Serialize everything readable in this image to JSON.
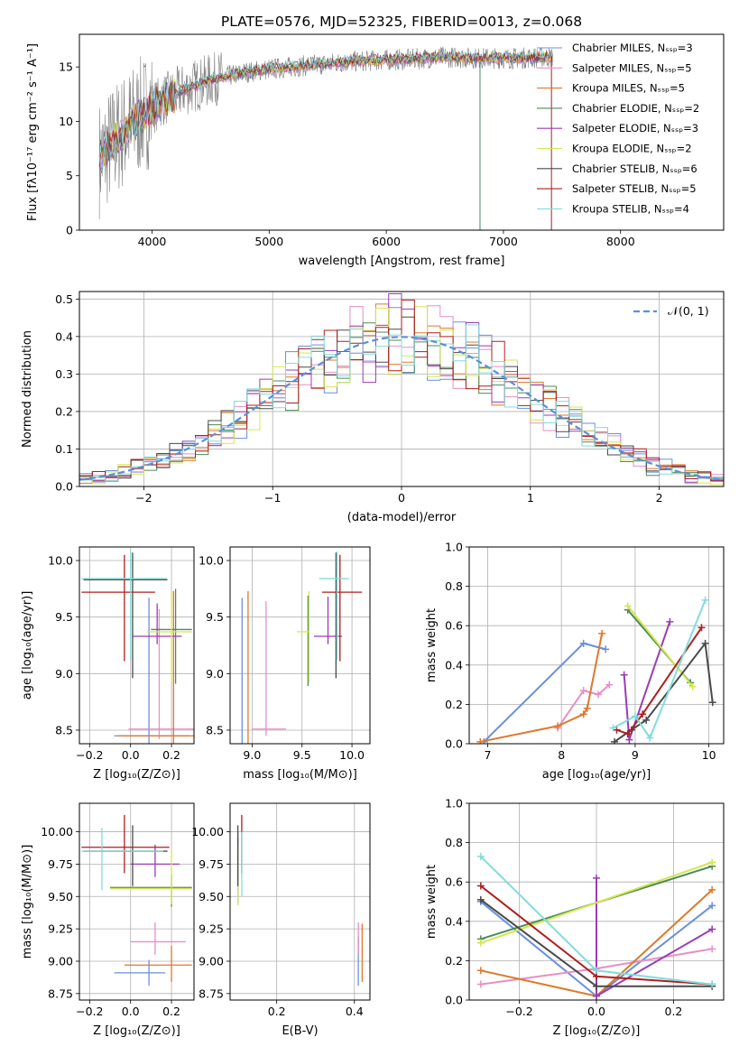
{
  "figure_title": "PLATE=0576, MJD=52325, FIBERID=0013, z=0.068",
  "colors": {
    "s0": "#6a8fdc",
    "s1": "#e88ec6",
    "s2": "#e0782a",
    "s3": "#4f8a5a",
    "s4": "#9a3cb4",
    "s5": "#d2e84e",
    "s6": "#4a4a4a",
    "s7": "#b01e1e",
    "s8": "#82dcdc",
    "data": "#808080",
    "normal": "#5b8fd9",
    "grid": "#b0b0b0"
  },
  "chart_data": [
    {
      "id": "spectrum",
      "type": "line",
      "xlabel": "wavelength [Angstrom, rest frame]",
      "ylabel": "Flux [fλ10⁻¹⁷ erg cm⁻² s⁻¹ A⁻¹]",
      "xlim": [
        3380,
        8880
      ],
      "ylim": [
        0,
        18
      ],
      "xticks": [
        "4000",
        "5000",
        "6000",
        "7000",
        "8000"
      ],
      "yticks": [
        "0",
        "5",
        "10",
        "15"
      ],
      "grid": false,
      "legend_placement": "upper-right",
      "model_envelope": {
        "x": [
          3550,
          3700,
          3900,
          4100,
          4300,
          4500,
          4800,
          5000,
          5300,
          5600,
          5900,
          6200,
          6500,
          6800,
          7100,
          7400
        ],
        "y": [
          6.5,
          8.5,
          10.5,
          12.0,
          13.0,
          13.8,
          14.5,
          14.8,
          15.1,
          15.4,
          15.6,
          15.7,
          15.9,
          15.8,
          15.8,
          15.9
        ]
      },
      "data_x_range": [
        3550,
        7420
      ],
      "legend": [
        {
          "label": "Chabrier MILES, N_SSP=3",
          "color": "s0"
        },
        {
          "label": "Salpeter MILES, N_SSP=5",
          "color": "s1"
        },
        {
          "label": "Kroupa MILES, N_SSP=5",
          "color": "s2"
        },
        {
          "label": "Chabrier ELODIE, N_SSP=2",
          "color": "s3"
        },
        {
          "label": "Salpeter ELODIE, N_SSP=3",
          "color": "s4"
        },
        {
          "label": "Kroupa ELODIE, N_SSP=2",
          "color": "s5"
        },
        {
          "label": "Chabrier STELIB, N_SSP=6",
          "color": "s6"
        },
        {
          "label": "Salpeter STELIB, N_SSP=5",
          "color": "s7"
        },
        {
          "label": "Kroupa STELIB, N_SSP=4",
          "color": "s8"
        }
      ]
    },
    {
      "id": "residuals",
      "type": "histogram",
      "xlabel": "(data-model)/error",
      "ylabel": "Normed distribution",
      "xlim": [
        -2.5,
        2.5
      ],
      "ylim": [
        0,
        0.52
      ],
      "xticks": [
        "−2",
        "−1",
        "0",
        "1",
        "2"
      ],
      "yticks": [
        "0.0",
        "0.1",
        "0.2",
        "0.3",
        "0.4",
        "0.5"
      ],
      "grid": true,
      "legend_placement": "upper-right",
      "legend_label": "𝒩(0, 1)",
      "bin_width": 0.1,
      "n_bins": 50,
      "normal_curve": {
        "mean": 0,
        "sigma": 1
      }
    },
    {
      "id": "age_vs_Z",
      "type": "errorbar",
      "xlabel": "Z [log₁₀(Z/Z⊙)]",
      "ylabel": "age  [log₁₀(age/yr)]",
      "xlim": [
        -0.25,
        0.31
      ],
      "ylim": [
        8.38,
        10.12
      ],
      "xticks": [
        "−0.2",
        "0.0",
        "0.2"
      ],
      "yticks": [
        "8.5",
        "9.0",
        "9.5",
        "10.0"
      ],
      "grid": true,
      "points": [
        {
          "x": 0.09,
          "y": 8.45,
          "xerr": [
            0.17,
            0.2
          ],
          "yerr": [
            0.08,
            1.22
          ],
          "color": "s0"
        },
        {
          "x": 0.14,
          "y": 8.51,
          "xerr": [
            0.15,
            0.18
          ],
          "yerr": [
            0.09,
            1.06
          ],
          "color": "s1"
        },
        {
          "x": 0.21,
          "y": 8.45,
          "xerr": [
            0.27,
            0.1
          ],
          "yerr": [
            0.1,
            1.28
          ],
          "color": "s2"
        },
        {
          "x": 0.22,
          "y": 9.39,
          "xerr": [
            0.12,
            0.08
          ],
          "yerr": [
            0.48,
            0.36
          ],
          "color": "s3"
        },
        {
          "x": 0.13,
          "y": 9.33,
          "xerr": [
            0.12,
            0.12
          ],
          "yerr": [
            0.07,
            0.29
          ],
          "color": "s4"
        },
        {
          "x": 0.2,
          "y": 9.37,
          "xerr": [
            0.12,
            0.1
          ],
          "yerr": [
            0.45,
            0.36
          ],
          "color": "s5"
        },
        {
          "x": 0.01,
          "y": 9.83,
          "xerr": [
            0.24,
            0.17
          ],
          "yerr": [
            0.87,
            0.24
          ],
          "color": "s6"
        },
        {
          "x": -0.03,
          "y": 9.72,
          "xerr": [
            0.21,
            0.15
          ],
          "yerr": [
            0.61,
            0.33
          ],
          "color": "s7"
        },
        {
          "x": 0.0,
          "y": 9.84,
          "xerr": [
            0.24,
            0.18
          ],
          "yerr": [
            0.72,
            0.24
          ],
          "color": "s8"
        }
      ]
    },
    {
      "id": "age_vs_mass",
      "type": "errorbar",
      "xlabel": "mass [log₁₀(M/M⊙)]",
      "ylabel": "",
      "xlim": [
        8.78,
        10.18
      ],
      "ylim": [
        8.38,
        10.12
      ],
      "xticks": [
        "9.0",
        "9.5",
        "10.0"
      ],
      "yticks": [
        "8.5",
        "9.0",
        "9.5",
        "10.0"
      ],
      "grid": true,
      "points": [
        {
          "x": 8.9,
          "y": 8.45,
          "xerr": [
            0.0,
            0.0
          ],
          "yerr": [
            0.08,
            1.22
          ],
          "color": "s0"
        },
        {
          "x": 9.14,
          "y": 8.51,
          "xerr": [
            0.14,
            0.2
          ],
          "yerr": [
            0.06,
            1.13
          ],
          "color": "s1"
        },
        {
          "x": 8.96,
          "y": 8.45,
          "xerr": [
            0.0,
            0.0
          ],
          "yerr": [
            0.1,
            1.28
          ],
          "color": "s2"
        },
        {
          "x": 9.56,
          "y": 9.39,
          "xerr": [
            0.0,
            0.0
          ],
          "yerr": [
            0.5,
            0.3
          ],
          "color": "s3"
        },
        {
          "x": 9.76,
          "y": 9.33,
          "xerr": [
            0.14,
            0.14
          ],
          "yerr": [
            0.07,
            0.35
          ],
          "color": "s4"
        },
        {
          "x": 9.57,
          "y": 9.37,
          "xerr": [
            0.12,
            0.0
          ],
          "yerr": [
            0.45,
            0.36
          ],
          "color": "s5"
        },
        {
          "x": 9.84,
          "y": 9.83,
          "xerr": [
            0.0,
            0.0
          ],
          "yerr": [
            0.87,
            0.24
          ],
          "color": "s6"
        },
        {
          "x": 9.88,
          "y": 9.72,
          "xerr": [
            0.18,
            0.22
          ],
          "yerr": [
            0.61,
            0.33
          ],
          "color": "s7"
        },
        {
          "x": 9.85,
          "y": 9.84,
          "xerr": [
            0.18,
            0.12
          ],
          "yerr": [
            0.72,
            0.24
          ],
          "color": "s8"
        }
      ]
    },
    {
      "id": "massweight_vs_age",
      "type": "line",
      "xlabel": "age  [log₁₀(age/yr)]",
      "ylabel": "mass weight",
      "xlim": [
        6.75,
        10.2
      ],
      "ylim": [
        0,
        1
      ],
      "xticks": [
        "7",
        "8",
        "9",
        "10"
      ],
      "yticks": [
        "0.0",
        "0.2",
        "0.4",
        "0.6",
        "0.8",
        "1.0"
      ],
      "grid": true,
      "series": [
        {
          "color": "s0",
          "x": [
            6.95,
            8.3,
            8.6
          ],
          "y": [
            0.01,
            0.51,
            0.48
          ]
        },
        {
          "color": "s1",
          "x": [
            7.95,
            8.3,
            8.5,
            8.65
          ],
          "y": [
            0.08,
            0.27,
            0.25,
            0.3
          ]
        },
        {
          "color": "s2",
          "x": [
            6.9,
            7.95,
            8.3,
            8.35,
            8.55
          ],
          "y": [
            0.01,
            0.09,
            0.15,
            0.18,
            0.56
          ]
        },
        {
          "color": "s3",
          "x": [
            8.9,
            9.75
          ],
          "y": [
            0.68,
            0.31
          ]
        },
        {
          "color": "s4",
          "x": [
            8.85,
            8.92,
            9.47
          ],
          "y": [
            0.35,
            0.02,
            0.62
          ]
        },
        {
          "color": "s5",
          "x": [
            8.9,
            9.78
          ],
          "y": [
            0.7,
            0.29
          ]
        },
        {
          "color": "s6",
          "x": [
            8.72,
            8.95,
            9.15,
            9.95,
            10.05
          ],
          "y": [
            0.01,
            0.07,
            0.12,
            0.51,
            0.21
          ]
        },
        {
          "color": "s7",
          "x": [
            8.75,
            8.9,
            9.1,
            9.9
          ],
          "y": [
            0.07,
            0.05,
            0.15,
            0.59
          ]
        },
        {
          "color": "s8",
          "x": [
            8.7,
            9.0,
            9.2,
            9.95
          ],
          "y": [
            0.08,
            0.14,
            0.03,
            0.73
          ]
        }
      ]
    },
    {
      "id": "mass_vs_Z",
      "type": "errorbar",
      "xlabel": "Z [log₁₀(Z/Z⊙)]",
      "ylabel": "mass [log₁₀(M/M⊙)]",
      "xlim": [
        -0.25,
        0.31
      ],
      "ylim": [
        8.7,
        10.22
      ],
      "xticks": [
        "−0.2",
        "0.0",
        "0.2"
      ],
      "yticks": [
        "8.75",
        "9.00",
        "9.25",
        "9.50",
        "9.75",
        "10.00"
      ],
      "grid": true,
      "points": [
        {
          "x": 0.09,
          "y": 8.91,
          "xerr": [
            0.17,
            0.08
          ],
          "yerr": [
            0.1,
            0.1
          ],
          "color": "s0"
        },
        {
          "x": 0.12,
          "y": 9.15,
          "xerr": [
            0.12,
            0.15
          ],
          "yerr": [
            0.1,
            0.15
          ],
          "color": "s1"
        },
        {
          "x": 0.2,
          "y": 8.97,
          "xerr": [
            0.23,
            0.1
          ],
          "yerr": [
            0.13,
            0.15
          ],
          "color": "s2"
        },
        {
          "x": 0.2,
          "y": 9.57,
          "xerr": [
            0.3,
            0.1
          ],
          "yerr": [
            0.15,
            0.1
          ],
          "color": "s3"
        },
        {
          "x": 0.12,
          "y": 9.75,
          "xerr": [
            0.12,
            0.12
          ],
          "yerr": [
            0.1,
            0.15
          ],
          "color": "s4"
        },
        {
          "x": 0.2,
          "y": 9.56,
          "xerr": [
            0.3,
            0.1
          ],
          "yerr": [
            0.12,
            0.3
          ],
          "color": "s5"
        },
        {
          "x": 0.01,
          "y": 9.85,
          "xerr": [
            0.24,
            0.17
          ],
          "yerr": [
            0.27,
            0.2
          ],
          "color": "s6"
        },
        {
          "x": -0.03,
          "y": 9.88,
          "xerr": [
            0.21,
            0.22
          ],
          "yerr": [
            0.2,
            0.25
          ],
          "color": "s7"
        },
        {
          "x": -0.14,
          "y": 9.85,
          "xerr": [
            0.1,
            0.3
          ],
          "yerr": [
            0.3,
            0.18
          ],
          "color": "s8"
        }
      ]
    },
    {
      "id": "mass_vs_EBV",
      "type": "errorbar",
      "xlabel": "E(B-V)",
      "ylabel": "",
      "xlim": [
        0.08,
        0.44
      ],
      "ylim": [
        8.7,
        10.22
      ],
      "xticks": [
        "0.2",
        "0.4"
      ],
      "yticks": [
        "8.75",
        "9.00",
        "9.25",
        "9.50",
        "9.75",
        "10.00"
      ],
      "grid": true,
      "points": [
        {
          "x": 0.41,
          "y": 8.91,
          "xerr": [
            0,
            0
          ],
          "yerr": [
            0.1,
            0.28
          ],
          "color": "s0"
        },
        {
          "x": 0.41,
          "y": 9.15,
          "xerr": [
            0,
            0
          ],
          "yerr": [
            0.1,
            0.15
          ],
          "color": "s1"
        },
        {
          "x": 0.42,
          "y": 8.97,
          "xerr": [
            0,
            0
          ],
          "yerr": [
            0.13,
            0.32
          ],
          "color": "s2"
        },
        {
          "x": 0.1,
          "y": 9.75,
          "xerr": [
            0,
            0
          ],
          "yerr": [
            0.3,
            0.25
          ],
          "color": "s3"
        },
        {
          "x": 0.1,
          "y": 9.75,
          "xerr": [
            0,
            0
          ],
          "yerr": [
            0.2,
            0.2
          ],
          "color": "s4"
        },
        {
          "x": 0.1,
          "y": 9.65,
          "xerr": [
            0,
            0
          ],
          "yerr": [
            0.22,
            0.25
          ],
          "color": "s5"
        },
        {
          "x": 0.1,
          "y": 9.85,
          "xerr": [
            0,
            0
          ],
          "yerr": [
            0.27,
            0.2
          ],
          "color": "s6"
        },
        {
          "x": 0.11,
          "y": 9.88,
          "xerr": [
            0,
            0
          ],
          "yerr": [
            0.2,
            0.25
          ],
          "color": "s7"
        },
        {
          "x": 0.11,
          "y": 9.7,
          "xerr": [
            0,
            0
          ],
          "yerr": [
            0.2,
            0.3
          ],
          "color": "s8"
        }
      ]
    },
    {
      "id": "massweight_vs_Z",
      "type": "line",
      "xlabel": "Z [log₁₀(Z/Z⊙)]",
      "ylabel": "mass weight",
      "xlim": [
        -0.33,
        0.33
      ],
      "ylim": [
        0,
        1
      ],
      "xticks": [
        "−0.2",
        "0.0",
        "0.2"
      ],
      "yticks": [
        "0.0",
        "0.2",
        "0.4",
        "0.6",
        "0.8",
        "1.0"
      ],
      "grid": true,
      "series": [
        {
          "color": "s0",
          "x": [
            -0.3,
            0.0,
            0.3
          ],
          "y": [
            0.5,
            0.02,
            0.48
          ]
        },
        {
          "color": "s1",
          "x": [
            -0.3,
            0.0,
            0.3
          ],
          "y": [
            0.08,
            0.16,
            0.26
          ]
        },
        {
          "color": "s2",
          "x": [
            -0.3,
            0.0,
            0.3
          ],
          "y": [
            0.15,
            0.02,
            0.56
          ]
        },
        {
          "color": "s3",
          "x": [
            -0.3,
            0.3
          ],
          "y": [
            0.31,
            0.68
          ]
        },
        {
          "color": "s4",
          "x": [
            0.0,
            0.0,
            0.3
          ],
          "y": [
            0.62,
            0.02,
            0.36
          ]
        },
        {
          "color": "s5",
          "x": [
            -0.3,
            0.3
          ],
          "y": [
            0.29,
            0.7
          ]
        },
        {
          "color": "s6",
          "x": [
            -0.3,
            0.0,
            0.3
          ],
          "y": [
            0.51,
            0.07,
            0.07
          ]
        },
        {
          "color": "s7",
          "x": [
            -0.3,
            0.0,
            0.3
          ],
          "y": [
            0.58,
            0.12,
            0.08
          ]
        },
        {
          "color": "s8",
          "x": [
            -0.3,
            0.0,
            0.3
          ],
          "y": [
            0.73,
            0.15,
            0.08
          ]
        }
      ]
    }
  ]
}
